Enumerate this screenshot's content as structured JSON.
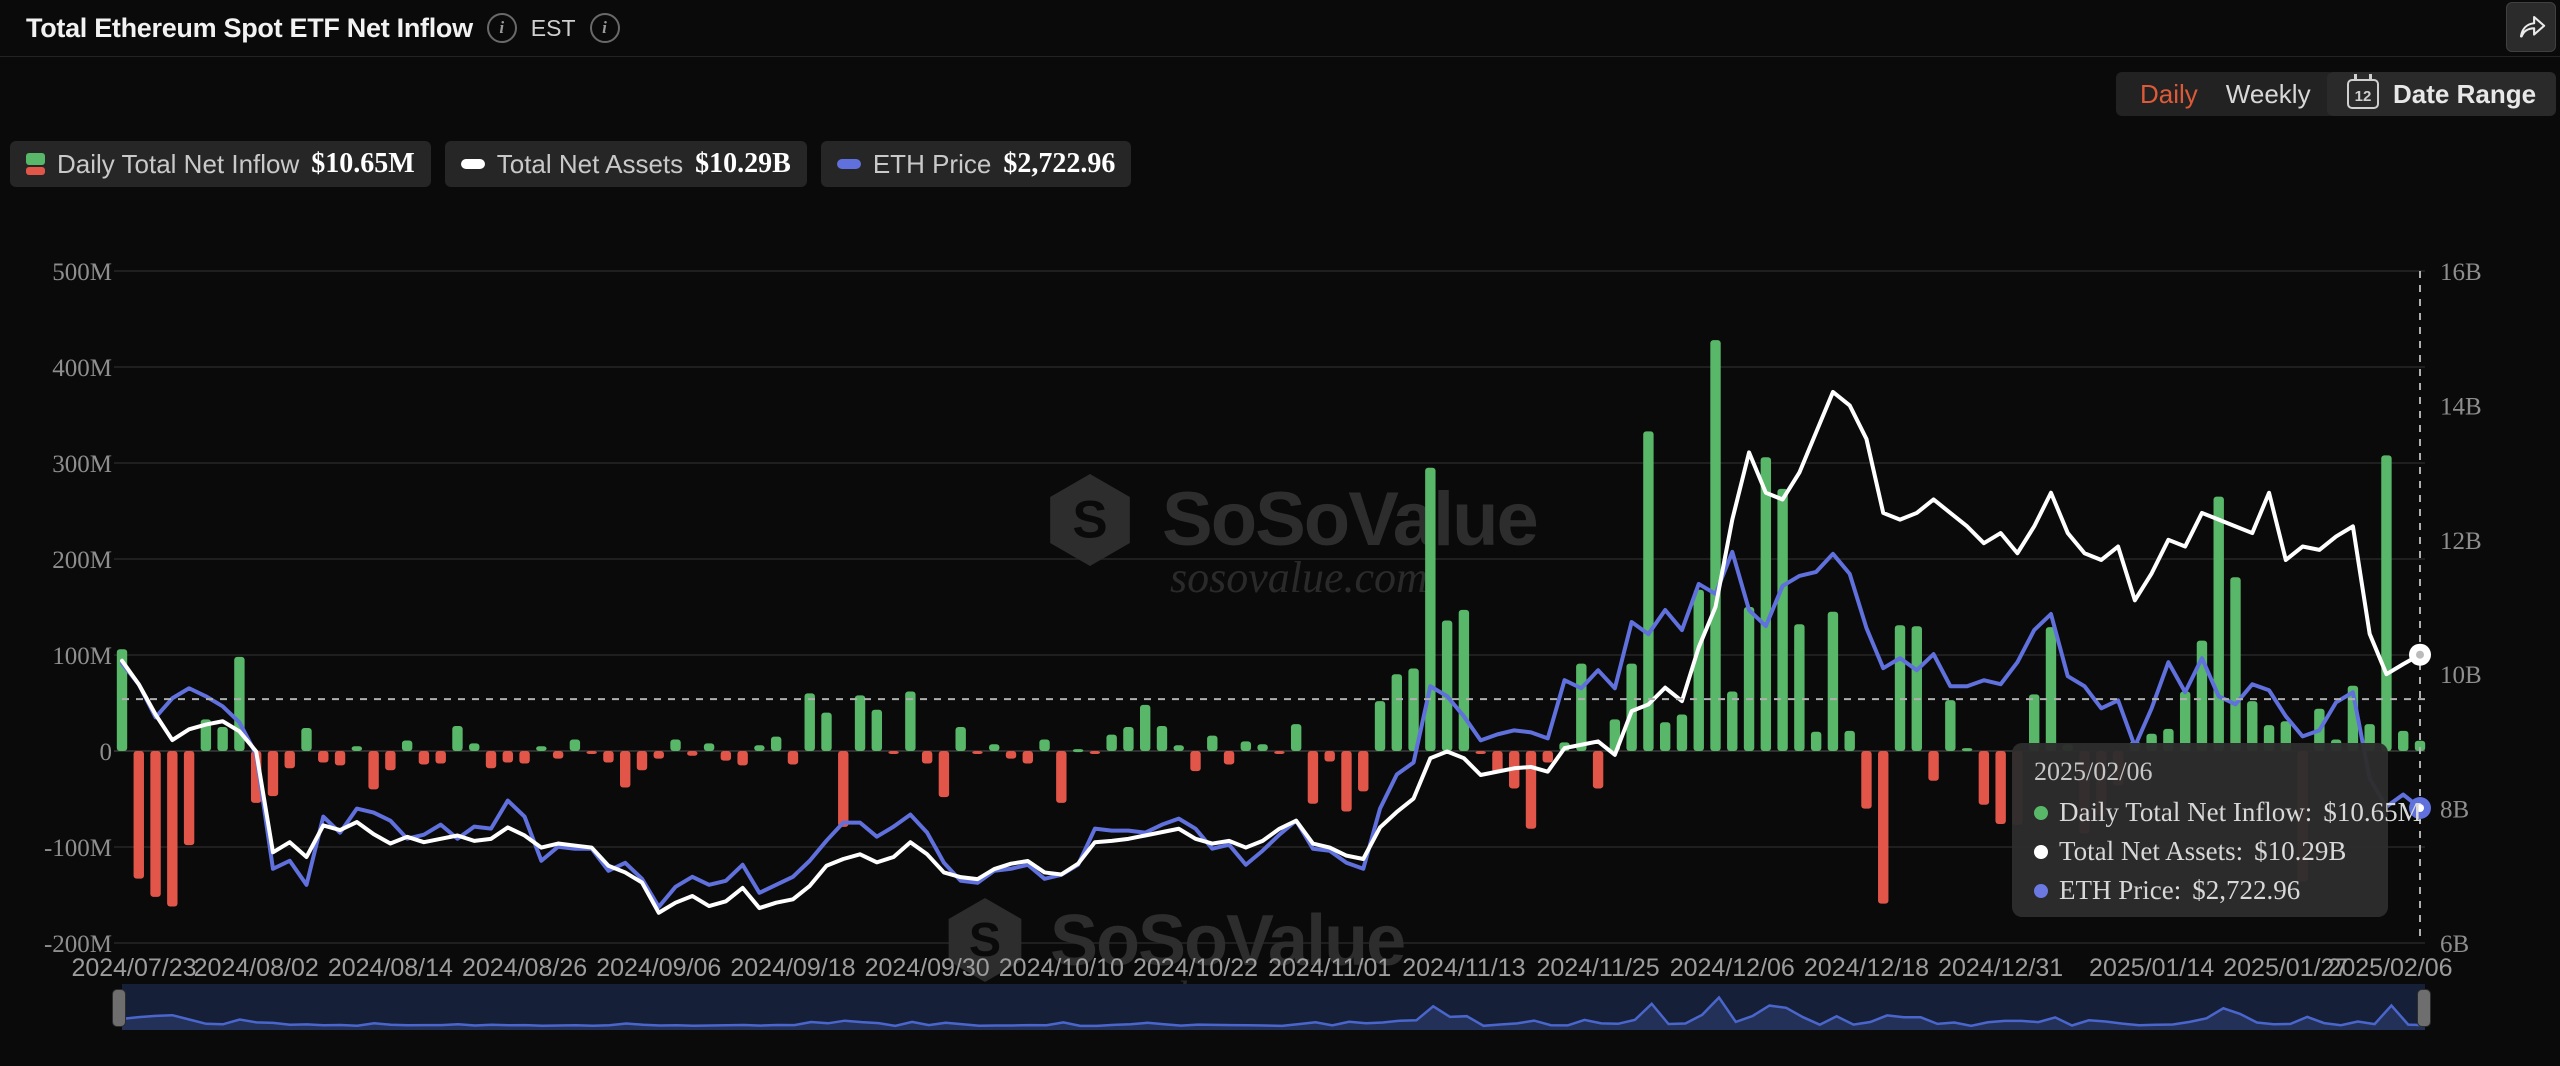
{
  "header": {
    "title": "Total Ethereum Spot ETF Net Inflow",
    "est_label": "EST"
  },
  "controls": {
    "daily": "Daily",
    "weekly": "Weekly",
    "date_range": "Date Range",
    "calendar_day": "12"
  },
  "legend": {
    "items": [
      {
        "label": "Daily Total Net Inflow",
        "value": "$10.65M"
      },
      {
        "label": "Total Net Assets",
        "value": "$10.29B"
      },
      {
        "label": "ETH Price",
        "value": "$2,722.96"
      }
    ]
  },
  "watermark": {
    "brand": "SoSoValue",
    "domain": "sosovalue.com"
  },
  "tooltip": {
    "date": "2025/02/06",
    "rows": [
      {
        "label": "Daily Total Net Inflow:",
        "value": "$10.65M",
        "color": "#58b768"
      },
      {
        "label": "Total Net Assets:",
        "value": "$10.29B",
        "color": "#ffffff"
      },
      {
        "label": "ETH Price:",
        "value": "$2,722.96",
        "color": "#6b79e0"
      }
    ]
  },
  "colors": {
    "green": "#58b768",
    "red": "#e2564a",
    "white_line": "#ffffff",
    "blue_line": "#6070dc",
    "grid": "#262626",
    "grid_zero": "#3a3a3a",
    "axis_text": "#8e8e8e",
    "date_text": "#9c9c9c",
    "crosshair": "#b0b0b0",
    "watermark": "#2d2d2d",
    "accent_daily": "#dd5a38",
    "minimap_line": "#4a66cc",
    "minimap_fill": "#233158",
    "minimap_bg": "#151f38"
  },
  "chart_data": {
    "type": "bar",
    "title": "Total Ethereum Spot ETF Net Inflow",
    "x_ticks": {
      "indices": [
        0,
        8,
        16,
        24,
        32,
        40,
        48,
        56,
        64,
        72,
        80,
        88,
        96,
        104,
        112,
        121,
        129,
        137
      ],
      "labels": [
        "2024/07/23",
        "2024/08/02",
        "2024/08/14",
        "2024/08/26",
        "2024/09/06",
        "2024/09/18",
        "2024/09/30",
        "2024/10/10",
        "2024/10/22",
        "2024/11/01",
        "2024/11/13",
        "2024/11/25",
        "2024/12/06",
        "2024/12/18",
        "2024/12/31",
        "2025/01/14",
        "2025/01/27",
        "2025/02/06"
      ]
    },
    "left_axis": {
      "labels": [
        "500M",
        "400M",
        "300M",
        "200M",
        "100M",
        "0",
        "-100M",
        "-200M"
      ],
      "values_M": [
        500,
        400,
        300,
        200,
        100,
        0,
        -100,
        -200
      ]
    },
    "right_axis": {
      "labels": [
        "16B",
        "14B",
        "12B",
        "10B",
        "8B",
        "6B"
      ],
      "values_B": [
        16,
        14,
        12,
        10,
        8,
        6
      ]
    },
    "eth_hidden_axis_range": [
      2050,
      5400
    ],
    "crosshair": {
      "x_index": 137,
      "h_value_M": 54
    },
    "series": [
      {
        "name": "Daily Total Net Inflow",
        "type": "bar",
        "unit": "$M",
        "values": [
          106,
          -133,
          -152,
          -162,
          -98,
          33,
          25,
          98,
          -54,
          -47,
          -18,
          24,
          -12,
          -15,
          5,
          -40,
          -20,
          11,
          -14,
          -13,
          26,
          8,
          -18,
          -12,
          -13,
          5,
          -8,
          12,
          -3,
          -12,
          -38,
          -20,
          -8,
          12,
          -5,
          8,
          -10,
          -15,
          6,
          15,
          -14,
          60,
          40,
          -79,
          58,
          43,
          -1,
          62,
          -13,
          -48,
          25,
          -3,
          7,
          -8,
          -13,
          12,
          -54,
          2,
          -1,
          17,
          25,
          48,
          26,
          6,
          -21,
          16,
          -14,
          10,
          7,
          -2,
          28,
          -55,
          -11,
          -63,
          -42,
          52,
          80,
          86,
          295,
          136,
          147,
          -3,
          -22,
          -39,
          -81,
          -12,
          9,
          91,
          -39,
          33,
          91,
          333,
          30,
          38,
          168,
          428,
          62,
          150,
          306,
          273,
          132,
          20,
          145,
          21,
          -60,
          -159,
          131,
          130,
          -31,
          53,
          3,
          -56,
          -76,
          -77,
          59,
          129,
          7,
          -86,
          -68,
          -36,
          10,
          18,
          23,
          62,
          115,
          265,
          181,
          52,
          27,
          31,
          -136,
          44,
          12,
          68,
          28,
          308,
          21,
          10.65
        ]
      },
      {
        "name": "Total Net Assets",
        "type": "line",
        "unit": "$B",
        "values": [
          10.2,
          9.85,
          9.4,
          9.02,
          9.18,
          9.25,
          9.3,
          9.15,
          8.85,
          7.35,
          7.5,
          7.28,
          7.75,
          7.68,
          7.8,
          7.62,
          7.48,
          7.58,
          7.5,
          7.55,
          7.6,
          7.52,
          7.55,
          7.72,
          7.6,
          7.42,
          7.48,
          7.45,
          7.42,
          7.15,
          7.05,
          6.9,
          6.45,
          6.6,
          6.7,
          6.55,
          6.62,
          6.82,
          6.52,
          6.6,
          6.65,
          6.85,
          7.15,
          7.25,
          7.32,
          7.2,
          7.28,
          7.5,
          7.32,
          7.05,
          6.98,
          6.95,
          7.1,
          7.18,
          7.22,
          7.05,
          7.02,
          7.18,
          7.5,
          7.52,
          7.55,
          7.6,
          7.65,
          7.7,
          7.55,
          7.48,
          7.52,
          7.42,
          7.52,
          7.7,
          7.82,
          7.48,
          7.42,
          7.3,
          7.25,
          7.72,
          7.95,
          8.15,
          8.75,
          8.85,
          8.75,
          8.5,
          8.55,
          8.6,
          8.62,
          8.55,
          8.9,
          8.95,
          9.0,
          8.8,
          9.45,
          9.55,
          9.8,
          9.6,
          10.4,
          11.0,
          12.3,
          13.3,
          12.7,
          12.6,
          13.0,
          13.6,
          14.2,
          14.0,
          13.5,
          12.4,
          12.3,
          12.4,
          12.6,
          12.4,
          12.2,
          11.95,
          12.1,
          11.8,
          12.2,
          12.7,
          12.1,
          11.8,
          11.7,
          11.9,
          11.1,
          11.5,
          12.0,
          11.9,
          12.4,
          12.3,
          12.2,
          12.1,
          12.7,
          11.7,
          11.9,
          11.85,
          12.05,
          12.2,
          10.6,
          10.0,
          10.15,
          10.29
        ]
      },
      {
        "name": "ETH Price",
        "type": "line",
        "unit": "$",
        "values": [
          3444,
          3340,
          3175,
          3270,
          3320,
          3280,
          3230,
          3150,
          2990,
          2420,
          2460,
          2340,
          2680,
          2600,
          2720,
          2700,
          2660,
          2570,
          2590,
          2640,
          2570,
          2630,
          2620,
          2760,
          2680,
          2460,
          2530,
          2520,
          2520,
          2410,
          2450,
          2370,
          2230,
          2330,
          2380,
          2340,
          2360,
          2440,
          2300,
          2340,
          2380,
          2460,
          2560,
          2650,
          2650,
          2580,
          2630,
          2690,
          2600,
          2450,
          2360,
          2350,
          2410,
          2420,
          2440,
          2370,
          2390,
          2440,
          2620,
          2610,
          2610,
          2600,
          2640,
          2670,
          2620,
          2520,
          2540,
          2440,
          2510,
          2590,
          2660,
          2520,
          2510,
          2450,
          2420,
          2720,
          2890,
          2950,
          3330,
          3280,
          3180,
          3060,
          3090,
          3110,
          3100,
          3070,
          3360,
          3320,
          3410,
          3320,
          3650,
          3590,
          3710,
          3610,
          3840,
          3790,
          4000,
          3710,
          3630,
          3830,
          3880,
          3900,
          3990,
          3890,
          3620,
          3420,
          3470,
          3410,
          3490,
          3330,
          3330,
          3360,
          3340,
          3450,
          3610,
          3690,
          3380,
          3330,
          3220,
          3260,
          3030,
          3220,
          3450,
          3300,
          3470,
          3280,
          3240,
          3340,
          3310,
          3180,
          3080,
          3110,
          3250,
          3300,
          2870,
          2730,
          2790,
          2722.96
        ]
      }
    ]
  }
}
